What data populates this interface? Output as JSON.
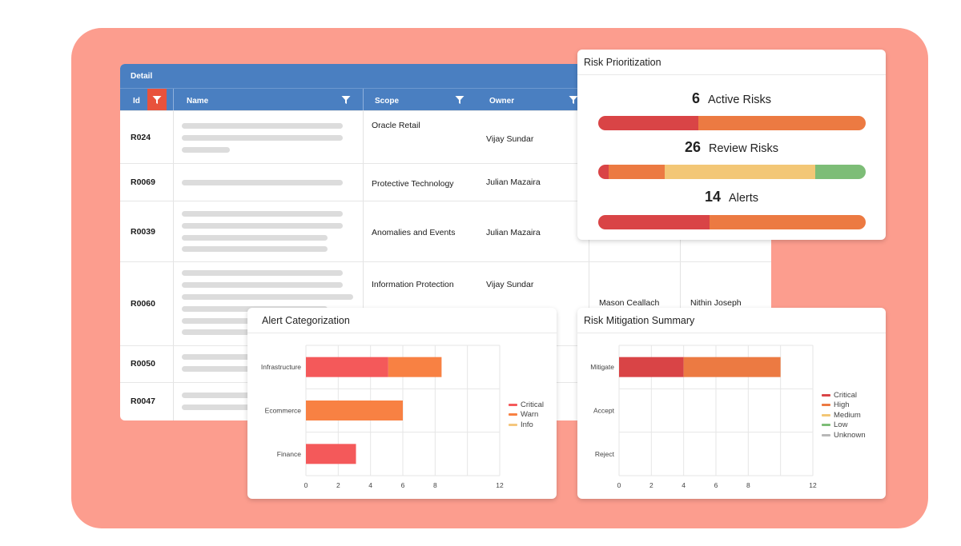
{
  "detail_table": {
    "title": "Detail",
    "columns": [
      {
        "label": "Id"
      },
      {
        "label": "Name"
      },
      {
        "label": "Scope"
      },
      {
        "label": "Owner"
      }
    ],
    "rows": [
      {
        "id": "R024",
        "scope": "Oracle Retail",
        "owner": "Vijay Sundar",
        "extra1": "",
        "extra2": ""
      },
      {
        "id": "R0069",
        "scope": "Protective Technology",
        "owner": "Julian Mazaira",
        "extra1": "",
        "extra2": ""
      },
      {
        "id": "R0039",
        "scope": "Anomalies and Events",
        "owner": "Julian Mazaira",
        "extra1": "",
        "extra2": ""
      },
      {
        "id": "R0060",
        "scope": "Information Protection",
        "owner": "Vijay Sundar",
        "extra1": "Mason Ceallach",
        "extra2": "Nithin Joseph"
      },
      {
        "id": "R0050",
        "scope": "",
        "owner": "",
        "extra1": "",
        "extra2": ""
      },
      {
        "id": "R0047",
        "scope": "",
        "owner": "",
        "extra1": "",
        "extra2": ""
      }
    ]
  },
  "risk_prioritization": {
    "title": "Risk Prioritization",
    "items": [
      {
        "count": "6",
        "label": "Active Risks",
        "segments": [
          {
            "fraction": 0.375,
            "color": "#d94446"
          },
          {
            "fraction": 0.625,
            "color": "#ec7a42"
          }
        ]
      },
      {
        "count": "26",
        "label": "Review Risks",
        "segments": [
          {
            "fraction": 0.04,
            "color": "#d94446"
          },
          {
            "fraction": 0.21,
            "color": "#ec7a42"
          },
          {
            "fraction": 0.56,
            "color": "#f3c776"
          },
          {
            "fraction": 0.19,
            "color": "#7dbd77"
          }
        ]
      },
      {
        "count": "14",
        "label": "Alerts",
        "segments": [
          {
            "fraction": 0.415,
            "color": "#d94446"
          },
          {
            "fraction": 0.585,
            "color": "#ec7a42"
          }
        ]
      }
    ]
  },
  "alert_categorization": {
    "title": "Alert Categorization",
    "legend": [
      {
        "label": "Critical",
        "color": "#f4595a"
      },
      {
        "label": "Warn",
        "color": "#f88143"
      },
      {
        "label": "Info",
        "color": "#f5c77e"
      }
    ]
  },
  "risk_mitigation": {
    "title": "Risk Mitigation Summary",
    "legend": [
      {
        "label": "Critical",
        "color": "#d94446"
      },
      {
        "label": "High",
        "color": "#ec7a42"
      },
      {
        "label": "Medium",
        "color": "#f3c776"
      },
      {
        "label": "Low",
        "color": "#7dbd77"
      },
      {
        "label": "Unknown",
        "color": "#b8b8b8"
      }
    ]
  },
  "chart_data": [
    {
      "type": "bar",
      "orientation": "horizontal",
      "stacked": true,
      "title": "Alert Categorization",
      "categories": [
        "Infrastructure",
        "Ecommerce",
        "Finance"
      ],
      "series": [
        {
          "name": "Critical",
          "color": "#f4595a",
          "values": [
            5.1,
            0,
            3.1
          ]
        },
        {
          "name": "Warn",
          "color": "#f88143",
          "values": [
            3.3,
            6,
            0
          ]
        },
        {
          "name": "Info",
          "color": "#f5c77e",
          "values": [
            0,
            0,
            0
          ]
        }
      ],
      "xlim": [
        0,
        12
      ],
      "xticks": [
        0,
        2,
        4,
        6,
        8,
        12
      ],
      "grid": true,
      "legend": "right"
    },
    {
      "type": "bar",
      "orientation": "horizontal",
      "stacked": true,
      "title": "Risk Mitigation Summary",
      "categories": [
        "Mitigate",
        "Accept",
        "Reject"
      ],
      "series": [
        {
          "name": "Critical",
          "color": "#d94446",
          "values": [
            4,
            0,
            0
          ]
        },
        {
          "name": "High",
          "color": "#ec7a42",
          "values": [
            6,
            0,
            0
          ]
        },
        {
          "name": "Medium",
          "color": "#f3c776",
          "values": [
            0,
            0,
            0
          ]
        },
        {
          "name": "Low",
          "color": "#7dbd77",
          "values": [
            0,
            0,
            0
          ]
        },
        {
          "name": "Unknown",
          "color": "#b8b8b8",
          "values": [
            0,
            0,
            0
          ]
        }
      ],
      "xlim": [
        0,
        12
      ],
      "xticks": [
        0,
        2,
        4,
        6,
        8,
        12
      ],
      "grid": true,
      "legend": "right"
    }
  ]
}
